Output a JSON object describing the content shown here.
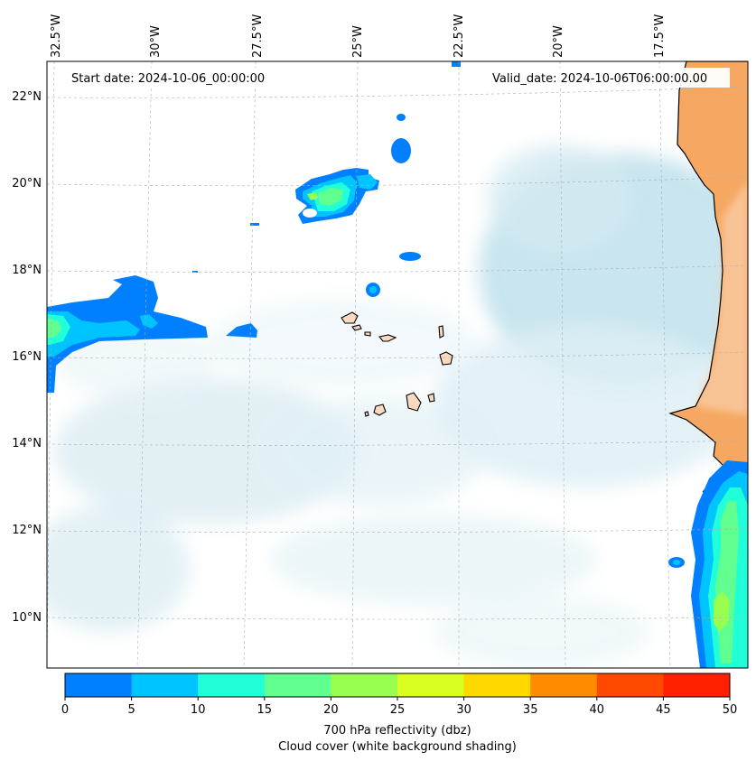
{
  "map": {
    "start_date_text": "Start date: 2024-10-06_00:00:00",
    "valid_date_text": "Valid_date: 2024-10-06T06:00:00.00",
    "lon_labels": [
      "32.5°W",
      "30°W",
      "27.5°W",
      "25°W",
      "22.5°W",
      "20°W",
      "17.5°W"
    ],
    "lat_labels": [
      "22°N",
      "20°N",
      "18°N",
      "16°N",
      "14°N",
      "12°N",
      "10°N"
    ],
    "land_color": "#f6a862",
    "cloud_color": "#a9d6e5",
    "coastline_color": "#000000"
  },
  "colorbar": {
    "ticks": [
      "0",
      "5",
      "10",
      "15",
      "20",
      "25",
      "30",
      "35",
      "40",
      "45",
      "50"
    ],
    "colors": [
      "#0080ff",
      "#00c4ff",
      "#20ffd8",
      "#60ff90",
      "#98ff50",
      "#d8ff20",
      "#ffd800",
      "#ff8c00",
      "#ff4800",
      "#ff2000"
    ],
    "title": "700 hPa reflectivity (dbz)",
    "subtitle": "Cloud cover (white background shading)"
  }
}
